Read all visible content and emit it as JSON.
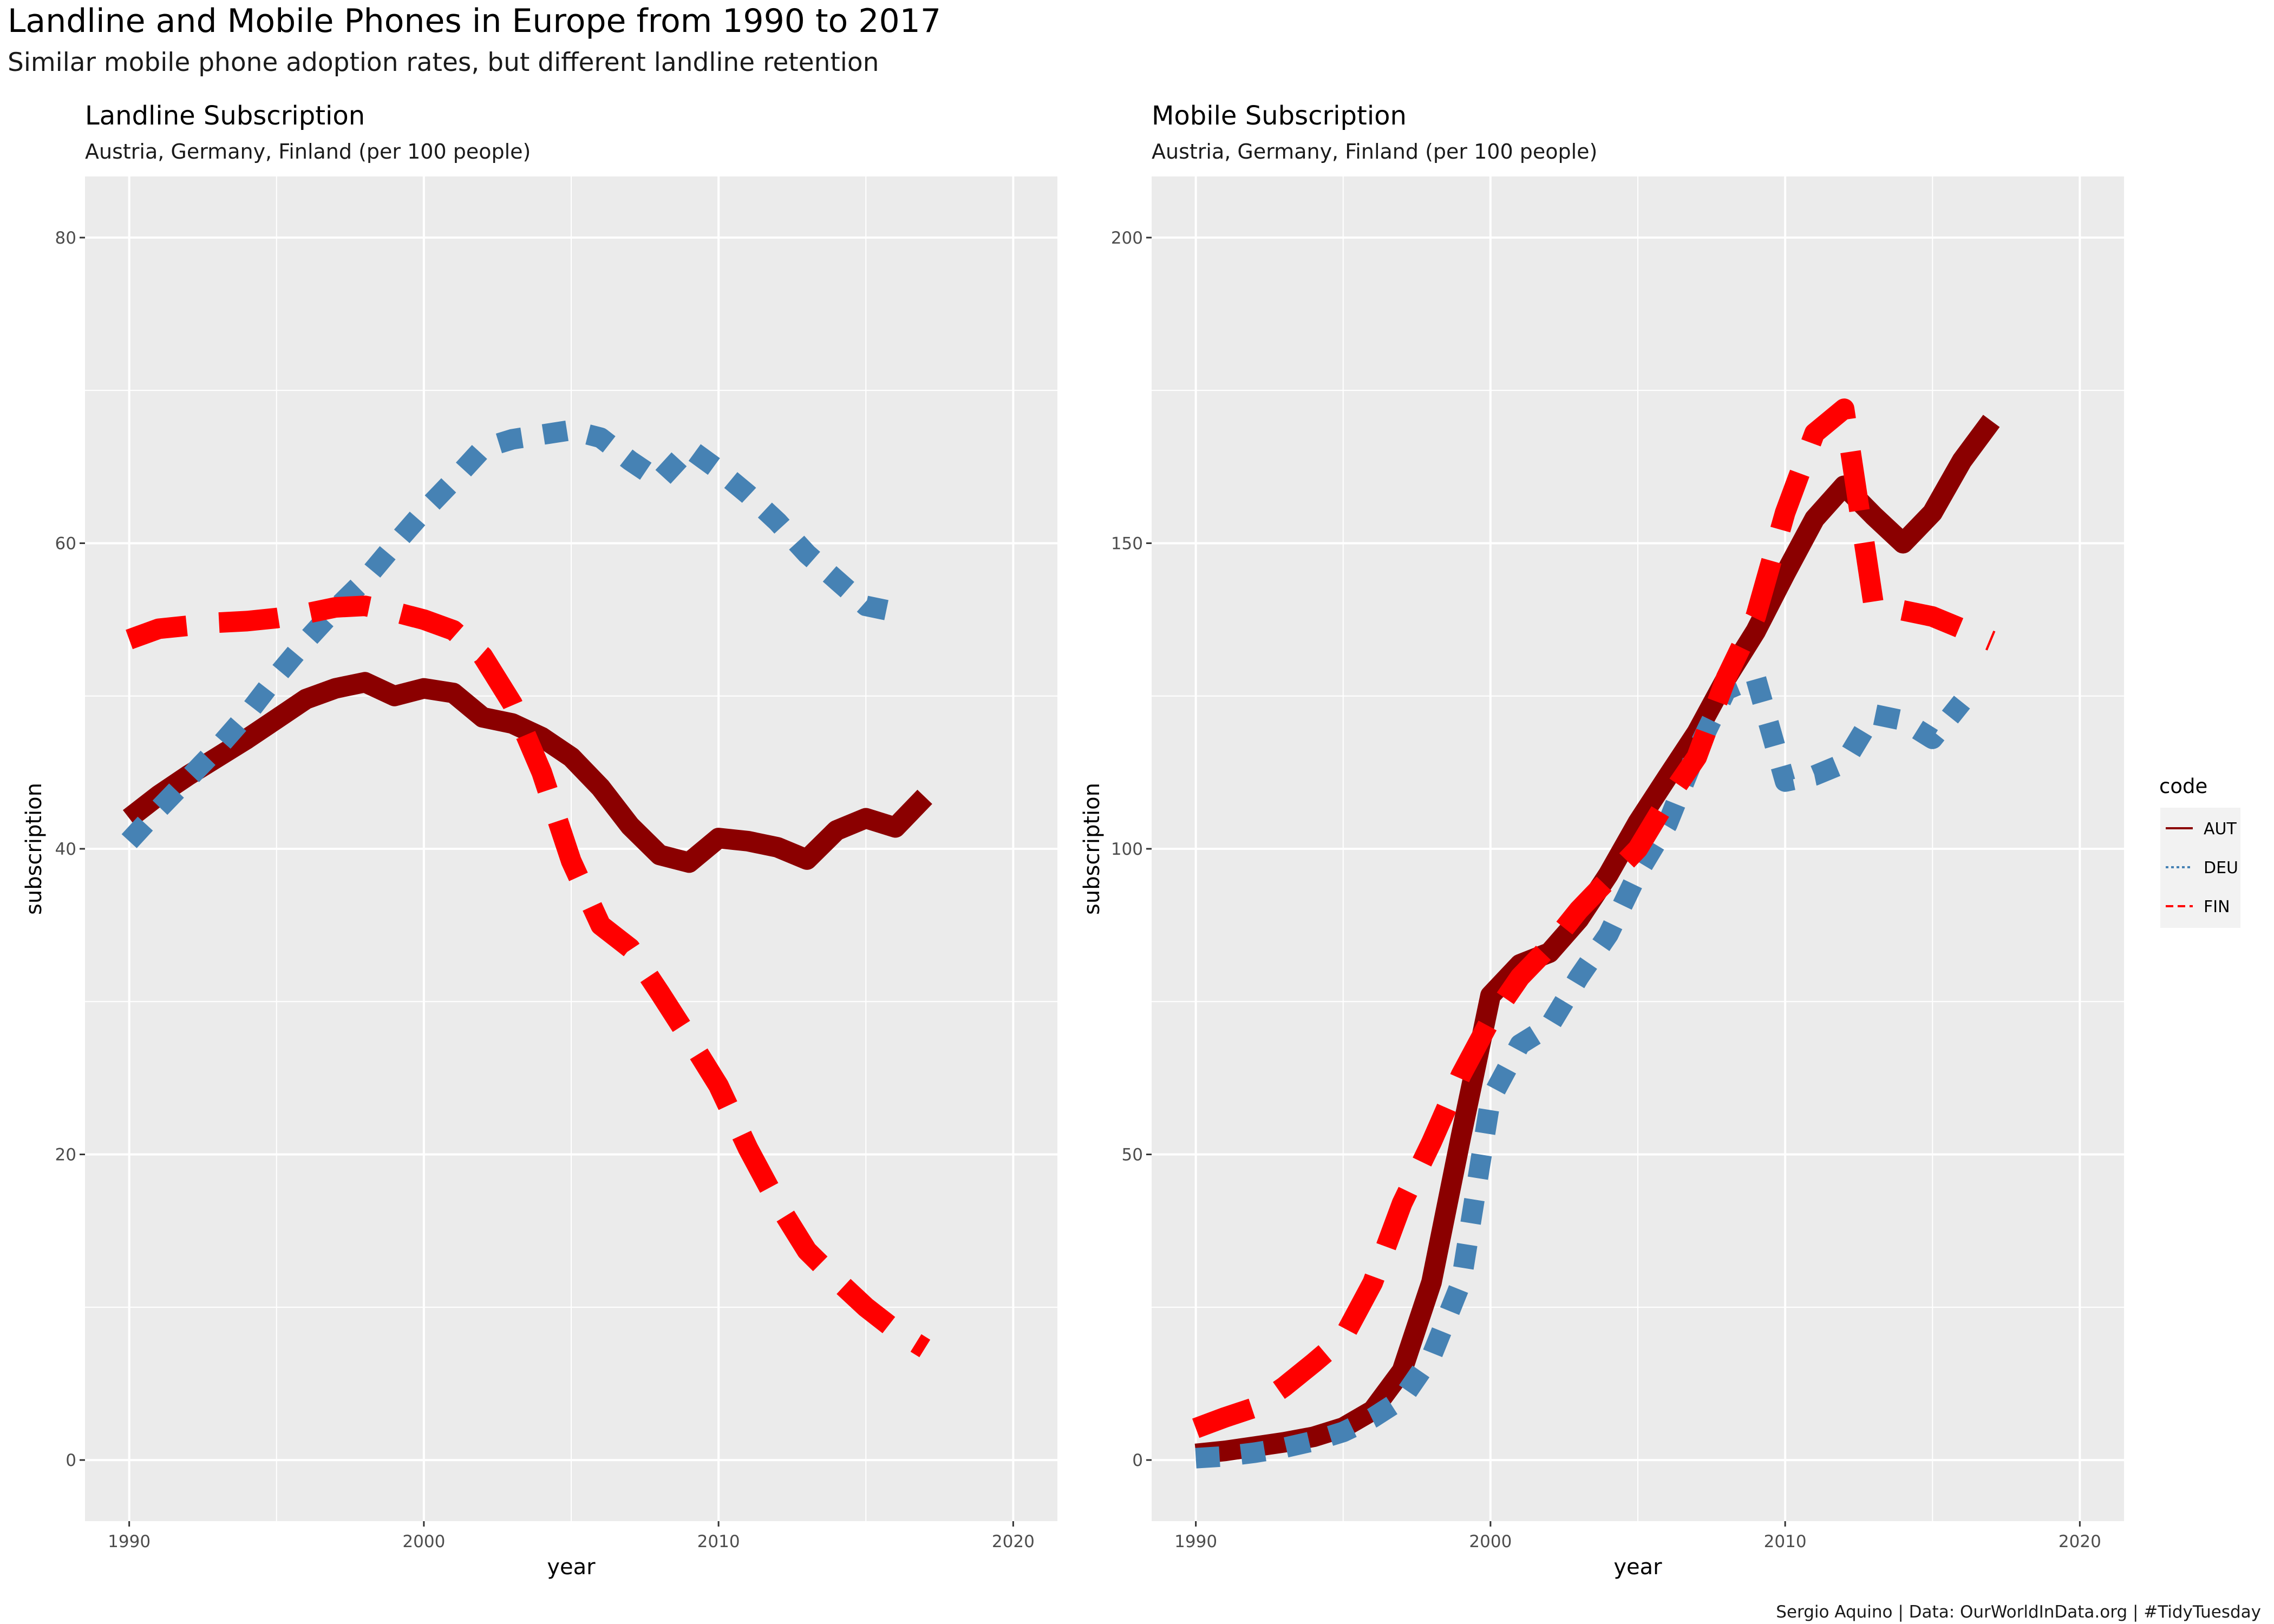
{
  "title": "Landline and Mobile Phones in Europe from 1990 to 2017",
  "subtitle": "Similar mobile phone adoption rates, but different landline retention",
  "caption": "Sergio Aquino | Data: OurWorldInData.org | #TidyTuesday",
  "colors": {
    "AUT": "#8b0000",
    "DEU": "#4682b4",
    "FIN": "#ff0000",
    "panel_bg": "#ebebeb",
    "grid": "#ffffff"
  },
  "legend": {
    "title": "code",
    "items": [
      {
        "code": "AUT",
        "label": "AUT",
        "dash": "solid"
      },
      {
        "code": "DEU",
        "label": "DEU",
        "dash": "dotted"
      },
      {
        "code": "FIN",
        "label": "FIN",
        "dash": "dashed"
      }
    ],
    "placement": "right"
  },
  "chart_data": [
    {
      "type": "line",
      "title": "Landline Subscription",
      "subtitle": "Austria, Germany, Finland (per 100 people)",
      "xlabel": "year",
      "ylabel": "subscription",
      "xlim": [
        1990,
        2020
      ],
      "ylim": [
        0,
        80
      ],
      "xticks": [
        1990,
        2000,
        2010,
        2020
      ],
      "yticks": [
        0,
        20,
        40,
        60,
        80
      ],
      "x": [
        1990,
        1991,
        1992,
        1993,
        1994,
        1995,
        1996,
        1997,
        1998,
        1999,
        2000,
        2001,
        2002,
        2003,
        2004,
        2005,
        2006,
        2007,
        2008,
        2009,
        2010,
        2011,
        2012,
        2013,
        2014,
        2015,
        2016,
        2017
      ],
      "series": [
        {
          "name": "AUT",
          "values": [
            42.0,
            43.5,
            44.8,
            46.0,
            47.2,
            48.5,
            49.8,
            50.5,
            50.9,
            50.0,
            50.5,
            50.2,
            48.6,
            48.2,
            47.3,
            46.0,
            44.0,
            41.5,
            39.6,
            39.1,
            40.7,
            40.5,
            40.1,
            39.3,
            41.2,
            42.0,
            41.4,
            43.4
          ]
        },
        {
          "name": "DEU",
          "values": [
            40.5,
            42.6,
            44.6,
            46.6,
            48.8,
            51.3,
            53.6,
            55.7,
            57.6,
            59.9,
            62.1,
            64.1,
            66.2,
            66.8,
            67.1,
            67.4,
            66.9,
            65.4,
            64.1,
            66.2,
            64.8,
            63.2,
            61.4,
            59.3,
            57.6,
            55.9,
            55.5,
            null
          ]
        },
        {
          "name": "FIN",
          "values": [
            53.7,
            54.4,
            54.6,
            54.8,
            54.9,
            55.1,
            55.4,
            55.8,
            55.9,
            55.5,
            55.0,
            54.3,
            52.6,
            49.5,
            45.0,
            39.2,
            35.0,
            33.5,
            30.6,
            27.6,
            24.5,
            20.4,
            16.8,
            13.7,
            11.8,
            10.0,
            8.5,
            7.3
          ]
        }
      ]
    },
    {
      "type": "line",
      "title": "Mobile Subscription",
      "subtitle": "Austria, Germany, Finland (per 100 people)",
      "xlabel": "year",
      "ylabel": "subscription",
      "xlim": [
        1990,
        2020
      ],
      "ylim": [
        0,
        200
      ],
      "xticks": [
        1990,
        2000,
        2010,
        2020
      ],
      "yticks": [
        0,
        50,
        100,
        150,
        200
      ],
      "x": [
        1990,
        1991,
        1992,
        1993,
        1994,
        1995,
        1996,
        1997,
        1998,
        1999,
        2000,
        2001,
        2002,
        2003,
        2004,
        2005,
        2006,
        2007,
        2008,
        2009,
        2010,
        2011,
        2012,
        2013,
        2014,
        2015,
        2016,
        2017
      ],
      "series": [
        {
          "name": "AUT",
          "values": [
            1.0,
            1.5,
            2.2,
            2.9,
            3.8,
            5.3,
            8.1,
            14.6,
            29.1,
            53.0,
            76.0,
            81.1,
            83.0,
            88.5,
            95.8,
            104.3,
            111.7,
            119.0,
            127.9,
            135.6,
            145.0,
            154.0,
            159.4,
            154.5,
            150.0,
            155.0,
            163.5,
            170.0
          ]
        },
        {
          "name": "DEU",
          "values": [
            0.3,
            0.6,
            1.2,
            2.0,
            3.1,
            4.6,
            6.9,
            10.0,
            17.0,
            29.0,
            59.0,
            68.0,
            71.0,
            79.0,
            86.0,
            96.0,
            104.0,
            116.0,
            126.0,
            128.0,
            111.0,
            112.0,
            114.0,
            122.0,
            121.0,
            118.0,
            124.0,
            null
          ]
        },
        {
          "name": "FIN",
          "values": [
            5.2,
            7.0,
            8.6,
            12.0,
            15.9,
            20.0,
            29.0,
            42.0,
            52.0,
            63.0,
            72.0,
            79.0,
            84.0,
            90.0,
            95.0,
            100.0,
            108.0,
            115.0,
            128.0,
            138.0,
            155.0,
            168.0,
            172.0,
            140.0,
            139.0,
            138.0,
            136.0,
            134.0
          ]
        }
      ]
    }
  ]
}
